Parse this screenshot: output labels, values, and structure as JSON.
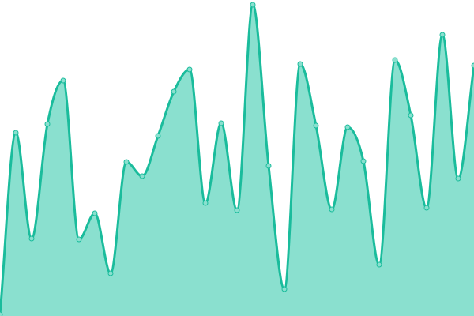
{
  "chart_data": {
    "type": "area",
    "title": "",
    "xlabel": "",
    "ylabel": "",
    "x": [
      0,
      1,
      2,
      3,
      4,
      5,
      6,
      7,
      8,
      9,
      10,
      11,
      12,
      13,
      14,
      15,
      16,
      17,
      18,
      19,
      20,
      21,
      22,
      23,
      24,
      25,
      26,
      27,
      28,
      29,
      30
    ],
    "values": [
      2,
      232,
      98,
      243,
      298,
      97,
      130,
      54,
      195,
      177,
      228,
      284,
      312,
      143,
      244,
      134,
      394,
      190,
      34,
      319,
      241,
      135,
      239,
      196,
      65,
      324,
      254,
      137,
      356,
      174,
      317
    ],
    "ylim": [
      0,
      400
    ],
    "grid": false,
    "axes_visible": false,
    "curve": "smooth",
    "colors": {
      "line": "#1abc9c",
      "fill": "#8ae0cf",
      "point_fill": "#8ae0cf"
    }
  }
}
